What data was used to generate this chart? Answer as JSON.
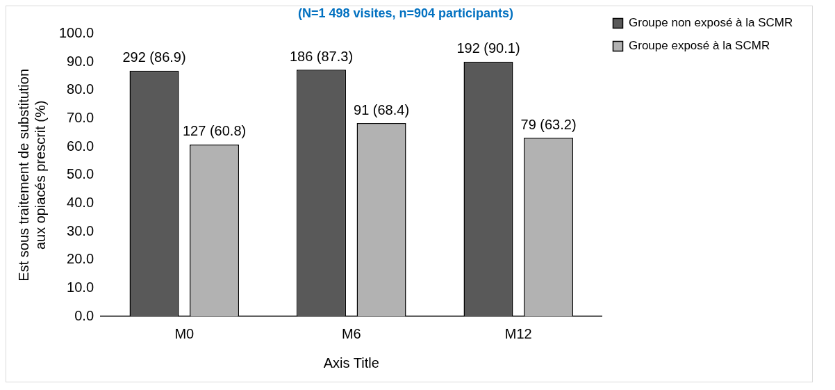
{
  "chart_data": {
    "type": "bar",
    "title": "(N=1 498 visites, n=904 participants)",
    "xlabel": "Axis Title",
    "ylabel": "Est sous traitement de substitution aux opiacés prescrit (%)",
    "categories": [
      "M0",
      "M6",
      "M12"
    ],
    "series": [
      {
        "name": "Groupe non exposé à la SCMR",
        "color": "#595959",
        "values": [
          86.9,
          87.3,
          90.1
        ],
        "value_labels": [
          "292 (86.9)",
          "186 (87.3)",
          "192 (90.1)"
        ]
      },
      {
        "name": "Groupe exposé à la SCMR",
        "color": "#b2b2b2",
        "values": [
          60.8,
          68.4,
          63.2
        ],
        "value_labels": [
          "127 (60.8)",
          "91 (68.4)",
          "79 (63.2)"
        ]
      }
    ],
    "ylim": [
      0,
      100
    ],
    "yticks": [
      {
        "value": 0,
        "label": "0.0"
      },
      {
        "value": 10,
        "label": "10.0"
      },
      {
        "value": 20,
        "label": "20.0"
      },
      {
        "value": 30,
        "label": "30.0"
      },
      {
        "value": 40,
        "label": "40.0"
      },
      {
        "value": 50,
        "label": "50.0"
      },
      {
        "value": 60,
        "label": "60.0"
      },
      {
        "value": 70,
        "label": "70.0"
      },
      {
        "value": 80,
        "label": "80.0"
      },
      {
        "value": 90,
        "label": "90.0"
      },
      {
        "value": 100,
        "label": "100.0"
      }
    ],
    "grid": false,
    "legend": "right"
  }
}
